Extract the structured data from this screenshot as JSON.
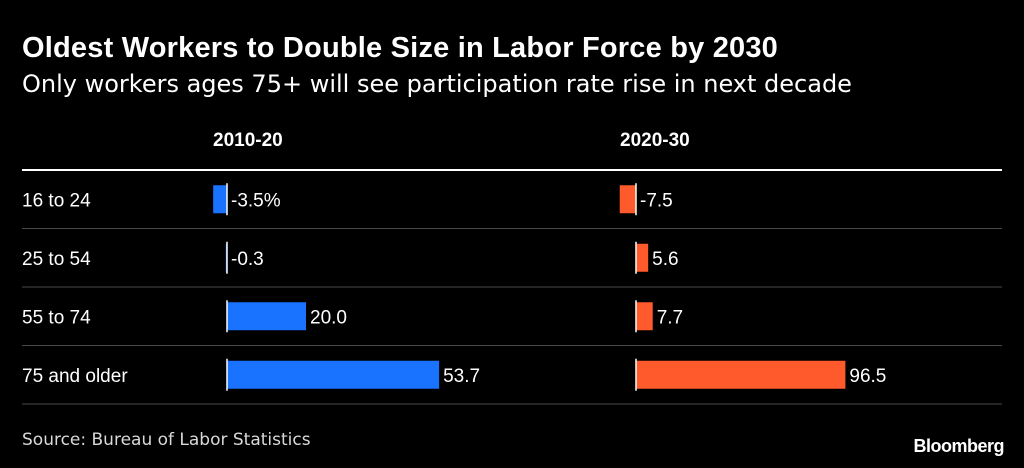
{
  "header": {
    "title": "Oldest Workers to Double Size in Labor Force by 2030",
    "subtitle": "Only workers ages 75+ will see participation rate rise in next decade"
  },
  "footer": {
    "source": "Source: Bureau of Labor Statistics",
    "brand": "Bloomberg"
  },
  "colors": {
    "background": "#000000",
    "series_2010_20": "#1a73ff",
    "series_2020_30": "#ff5a2b",
    "divider": "#4a4a4a"
  },
  "chart_data": {
    "type": "bar",
    "orientation": "horizontal",
    "categories": [
      "16 to 24",
      "25 to 54",
      "55 to 74",
      "75 and older"
    ],
    "series": [
      {
        "name": "2010-20",
        "values": [
          -3.5,
          -0.3,
          20.0,
          53.7
        ],
        "labels": [
          "-3.5%",
          "-0.3",
          "20.0",
          "53.7"
        ]
      },
      {
        "name": "2020-30",
        "values": [
          -7.5,
          5.6,
          7.7,
          96.5
        ],
        "labels": [
          "-7.5",
          "5.6",
          "7.7",
          "96.5"
        ]
      }
    ],
    "grid": false,
    "legend": "column headers"
  }
}
